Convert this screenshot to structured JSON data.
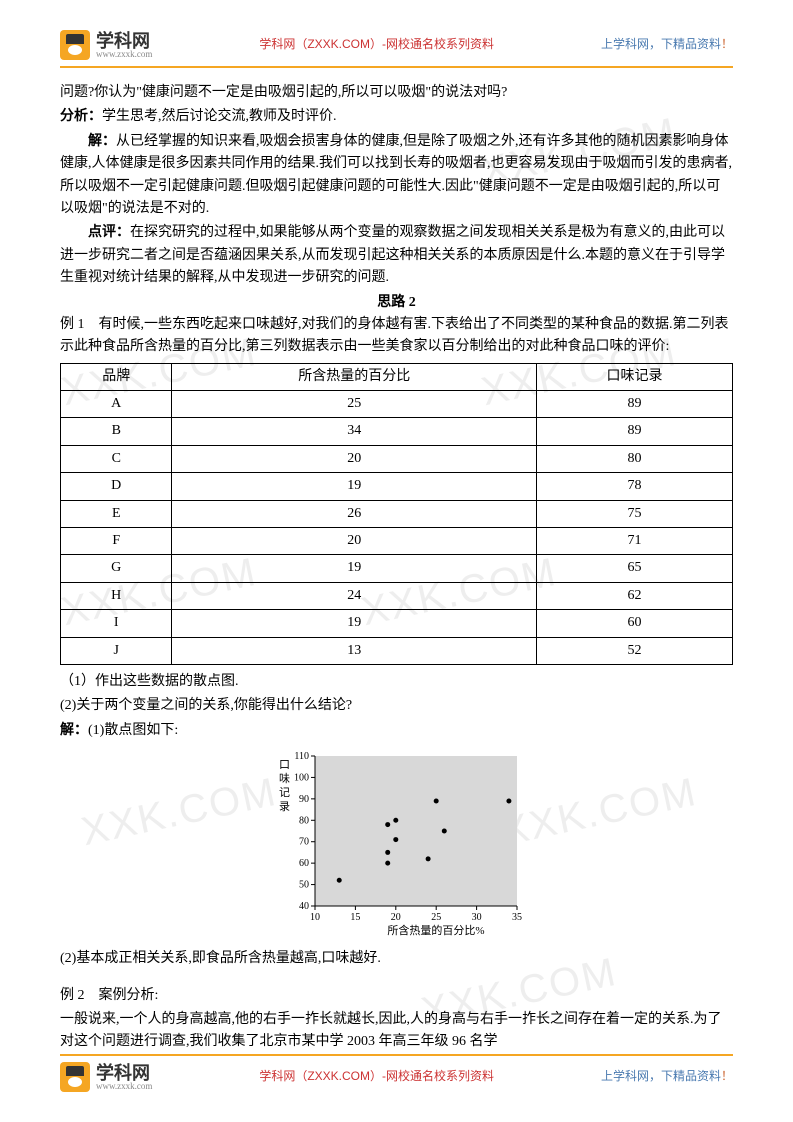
{
  "header": {
    "logo_main": "学科网",
    "logo_sub": "www.zxxk.com",
    "center": "学科网（ZXXK.COM）-网校通名校系列资料",
    "right_a": "上学科网，下精品资料",
    "right_b": "！"
  },
  "body": {
    "p1": "问题?你认为\"健康问题不一定是由吸烟引起的,所以可以吸烟\"的说法对吗?",
    "p2_label": "分析：",
    "p2": "学生思考,然后讨论交流,教师及时评价.",
    "p3_label": "解：",
    "p3": "从已经掌握的知识来看,吸烟会损害身体的健康,但是除了吸烟之外,还有许多其他的随机因素影响身体健康,人体健康是很多因素共同作用的结果.我们可以找到长寿的吸烟者,也更容易发现由于吸烟而引发的患病者,所以吸烟不一定引起健康问题.但吸烟引起健康问题的可能性大.因此\"健康问题不一定是由吸烟引起的,所以可以吸烟\"的说法是不对的.",
    "p4_label": "点评：",
    "p4": "在探究研究的过程中,如果能够从两个变量的观察数据之间发现相关关系是极为有意义的,由此可以进一步研究二者之间是否蕴涵因果关系,从而发现引起这种相关关系的本质原因是什么.本题的意义在于引导学生重视对统计结果的解释,从中发现进一步研究的问题.",
    "section_title": "思路 2",
    "ex1_intro": "例 1　有时候,一些东西吃起来口味越好,对我们的身体越有害.下表给出了不同类型的某种食品的数据.第二列表示此种食品所含热量的百分比,第三列数据表示由一些美食家以百分制给出的对此种食品口味的评价:",
    "table": {
      "columns": [
        "品牌",
        "所含热量的百分比",
        "口味记录"
      ],
      "rows": [
        [
          "A",
          "25",
          "89"
        ],
        [
          "B",
          "34",
          "89"
        ],
        [
          "C",
          "20",
          "80"
        ],
        [
          "D",
          "19",
          "78"
        ],
        [
          "E",
          "26",
          "75"
        ],
        [
          "F",
          "20",
          "71"
        ],
        [
          "G",
          "19",
          "65"
        ],
        [
          "H",
          "24",
          "62"
        ],
        [
          "I",
          "19",
          "60"
        ],
        [
          "J",
          "13",
          "52"
        ]
      ]
    },
    "q1": "（1）作出这些数据的散点图.",
    "q2": "(2)关于两个变量之间的关系,你能得出什么结论?",
    "ans_label": "解：",
    "ans1": "(1)散点图如下:",
    "chart": {
      "type": "scatter",
      "xlabel": "所含热量的百分比%",
      "ylabel_chars": [
        "口",
        "味",
        "记",
        "录"
      ],
      "xlim": [
        10,
        35
      ],
      "ylim": [
        40,
        110
      ],
      "xticks": [
        10,
        15,
        20,
        25,
        30,
        35
      ],
      "yticks": [
        40,
        50,
        60,
        70,
        80,
        90,
        100,
        110
      ],
      "points": [
        [
          25,
          89
        ],
        [
          34,
          89
        ],
        [
          20,
          80
        ],
        [
          19,
          78
        ],
        [
          26,
          75
        ],
        [
          20,
          71
        ],
        [
          19,
          65
        ],
        [
          24,
          62
        ],
        [
          19,
          60
        ],
        [
          13,
          52
        ]
      ],
      "bg": "#d8d8d8",
      "point_color": "#000000",
      "axis_color": "#000000",
      "tick_fontsize": 10,
      "label_fontsize": 11,
      "point_radius": 2.5
    },
    "ans2": "(2)基本成正相关关系,即食品所含热量越高,口味越好.",
    "ex2_title": "例 2　案例分析:",
    "ex2_body": "一般说来,一个人的身高越高,他的右手一拃长就越长,因此,人的身高与右手一拃长之间存在着一定的关系.为了对这个问题进行调查,我们收集了北京市某中学 2003 年高三年级 96 名学"
  }
}
